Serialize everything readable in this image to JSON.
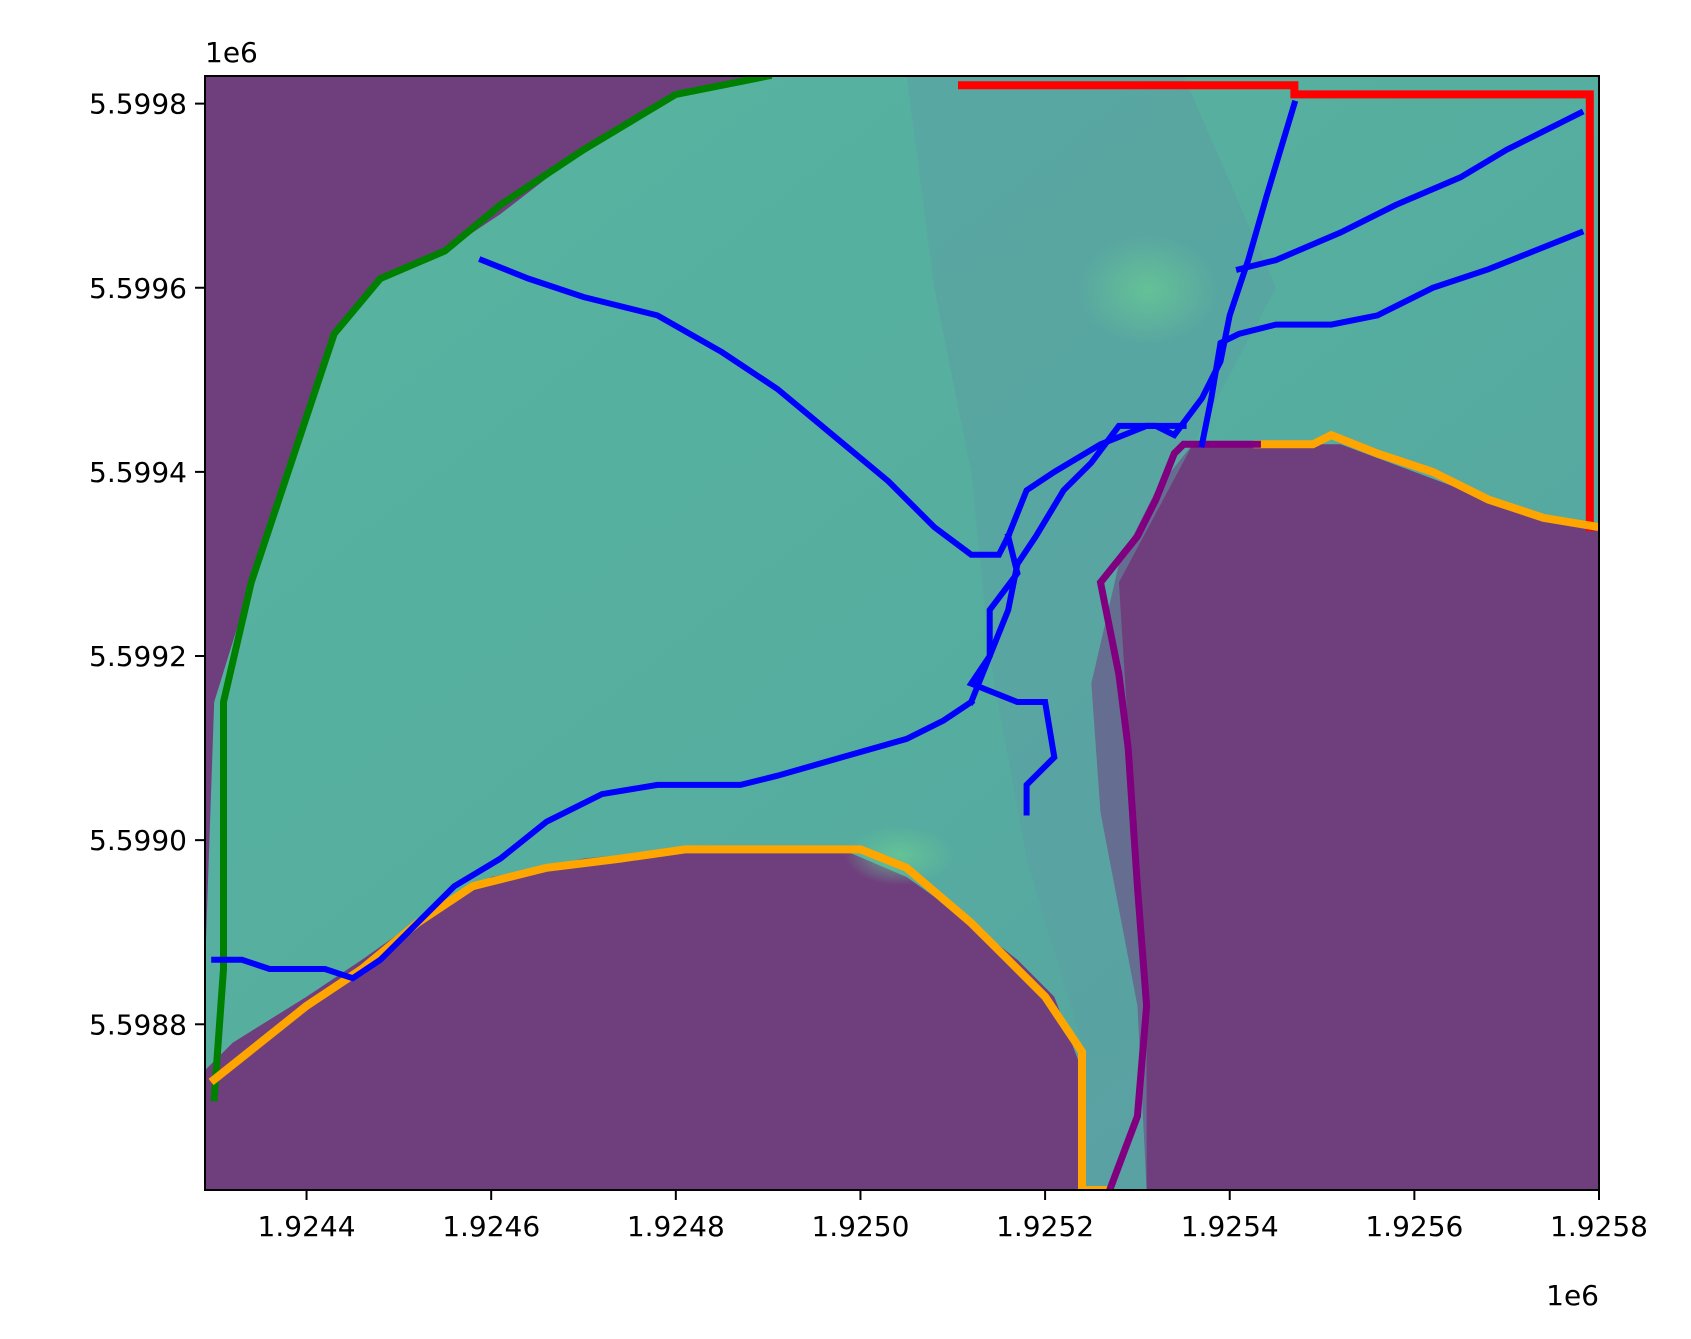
{
  "figure": {
    "x_offset_text": "1e6",
    "y_offset_text": "1e6"
  },
  "axes": {
    "xlim": [
      1.92429,
      1.9258
    ],
    "ylim": [
      5.59862,
      5.59983
    ],
    "x_ticks": [
      {
        "value": 1.9244,
        "label": "1.9244"
      },
      {
        "value": 1.9246,
        "label": "1.9246"
      },
      {
        "value": 1.9248,
        "label": "1.9248"
      },
      {
        "value": 1.925,
        "label": "1.9250"
      },
      {
        "value": 1.9252,
        "label": "1.9252"
      },
      {
        "value": 1.9254,
        "label": "1.9254"
      },
      {
        "value": 1.9256,
        "label": "1.9256"
      },
      {
        "value": 1.9258,
        "label": "1.9258"
      }
    ],
    "y_ticks": [
      {
        "value": 5.5998,
        "label": "5.5998"
      },
      {
        "value": 5.5996,
        "label": "5.5996"
      },
      {
        "value": 5.5994,
        "label": "5.5994"
      },
      {
        "value": 5.5992,
        "label": "5.5992"
      },
      {
        "value": 5.599,
        "label": "5.5990"
      },
      {
        "value": 5.5988,
        "label": "5.5988"
      }
    ]
  },
  "colors": {
    "background_mask": "#6f3f7d",
    "terrain": "#55ae9f",
    "terrain_dark": "#5a9ea2",
    "terrain_light": "#62c196",
    "channels": "#0000ff",
    "boundary_north": "#ff0000",
    "boundary_west": "#008000",
    "boundary_south": "#ffa500",
    "boundary_east": "#800080"
  },
  "map_layers": {
    "terrain_outline": [
      [
        1.92429,
        5.59872
      ],
      [
        1.92429,
        5.59886
      ],
      [
        1.9243,
        5.59915
      ],
      [
        1.92434,
        5.59928
      ],
      [
        1.92439,
        5.59943
      ],
      [
        1.92443,
        5.59955
      ],
      [
        1.92448,
        5.59961
      ],
      [
        1.92455,
        5.59964
      ],
      [
        1.92461,
        5.59968
      ],
      [
        1.9247,
        5.59975
      ],
      [
        1.9248,
        5.59981
      ],
      [
        1.9249,
        5.59983
      ],
      [
        1.9258,
        5.59983
      ],
      [
        1.9258,
        5.59934
      ],
      [
        1.92575,
        5.59935
      ],
      [
        1.92568,
        5.59937
      ],
      [
        1.9256,
        5.5994
      ],
      [
        1.92552,
        5.59943
      ],
      [
        1.92543,
        5.59943
      ],
      [
        1.92536,
        5.59943
      ],
      [
        1.92532,
        5.59938
      ],
      [
        1.92528,
        5.5993
      ],
      [
        1.92525,
        5.59917
      ],
      [
        1.92526,
        5.59903
      ],
      [
        1.9253,
        5.59882
      ],
      [
        1.92531,
        5.59862
      ],
      [
        1.92524,
        5.59862
      ],
      [
        1.92524,
        5.59875
      ],
      [
        1.92521,
        5.59883
      ],
      [
        1.92517,
        5.59887
      ],
      [
        1.92512,
        5.59891
      ],
      [
        1.92505,
        5.59896
      ],
      [
        1.92498,
        5.59899
      ],
      [
        1.92491,
        5.59899
      ],
      [
        1.9248,
        5.59899
      ],
      [
        1.9247,
        5.59898
      ],
      [
        1.9246,
        5.59896
      ],
      [
        1.92453,
        5.59892
      ],
      [
        1.92446,
        5.59887
      ],
      [
        1.9244,
        5.59883
      ],
      [
        1.92432,
        5.59878
      ],
      [
        1.92429,
        5.59875
      ]
    ],
    "boundary_north": [
      [
        [
          1.92511,
          5.59982
        ],
        [
          1.92547,
          5.59982
        ],
        [
          1.92547,
          5.59981
        ],
        [
          1.92579,
          5.59981
        ],
        [
          1.92579,
          5.59934
        ]
      ]
    ],
    "boundary_west": [
      [
        [
          1.9249,
          5.59983
        ],
        [
          1.9248,
          5.59981
        ],
        [
          1.9247,
          5.59975
        ],
        [
          1.92461,
          5.59969
        ],
        [
          1.92455,
          5.59964
        ],
        [
          1.92448,
          5.59961
        ],
        [
          1.92443,
          5.59955
        ],
        [
          1.92439,
          5.59943
        ],
        [
          1.92434,
          5.59928
        ],
        [
          1.92431,
          5.59915
        ],
        [
          1.92431,
          5.59886
        ],
        [
          1.9243,
          5.59872
        ]
      ]
    ],
    "boundary_south": [
      [
        [
          1.9243,
          5.59874
        ],
        [
          1.9244,
          5.59882
        ],
        [
          1.92446,
          5.59886
        ],
        [
          1.92452,
          5.59891
        ],
        [
          1.92458,
          5.59895
        ],
        [
          1.92466,
          5.59897
        ],
        [
          1.92474,
          5.59898
        ],
        [
          1.92481,
          5.59899
        ],
        [
          1.925,
          5.59899
        ],
        [
          1.92505,
          5.59897
        ],
        [
          1.92512,
          5.59891
        ],
        [
          1.92516,
          5.59887
        ],
        [
          1.9252,
          5.59883
        ],
        [
          1.92524,
          5.59877
        ],
        [
          1.92524,
          5.59862
        ],
        [
          1.92527,
          5.59862
        ]
      ],
      [
        [
          1.92543,
          5.59943
        ],
        [
          1.92549,
          5.59943
        ],
        [
          1.92551,
          5.59944
        ],
        [
          1.92556,
          5.59942
        ],
        [
          1.92562,
          5.5994
        ],
        [
          1.92568,
          5.59937
        ],
        [
          1.92574,
          5.59935
        ],
        [
          1.9258,
          5.59934
        ]
      ]
    ],
    "boundary_east": [
      [
        [
          1.92527,
          5.59862
        ],
        [
          1.9253,
          5.5987
        ],
        [
          1.92531,
          5.59882
        ],
        [
          1.9253,
          5.59895
        ],
        [
          1.92529,
          5.5991
        ],
        [
          1.92528,
          5.59918
        ],
        [
          1.92526,
          5.59928
        ],
        [
          1.9253,
          5.59933
        ],
        [
          1.92532,
          5.59937
        ],
        [
          1.92534,
          5.59942
        ],
        [
          1.92535,
          5.59943
        ],
        [
          1.92543,
          5.59943
        ]
      ]
    ],
    "channels": [
      [
        [
          1.9243,
          5.59887
        ],
        [
          1.92433,
          5.59887
        ],
        [
          1.92436,
          5.59886
        ],
        [
          1.92442,
          5.59886
        ],
        [
          1.92445,
          5.59885
        ],
        [
          1.92448,
          5.59887
        ],
        [
          1.92452,
          5.59891
        ],
        [
          1.92456,
          5.59895
        ],
        [
          1.92461,
          5.59898
        ],
        [
          1.92466,
          5.59902
        ],
        [
          1.92472,
          5.59905
        ],
        [
          1.92478,
          5.59906
        ],
        [
          1.92487,
          5.59906
        ],
        [
          1.92491,
          5.59907
        ],
        [
          1.92498,
          5.59909
        ],
        [
          1.92505,
          5.59911
        ],
        [
          1.92509,
          5.59913
        ],
        [
          1.92512,
          5.59915
        ]
      ],
      [
        [
          1.92512,
          5.59915
        ],
        [
          1.92514,
          5.5992
        ],
        [
          1.92516,
          5.59925
        ],
        [
          1.92517,
          5.5993
        ],
        [
          1.92519,
          5.59933
        ],
        [
          1.92522,
          5.59938
        ],
        [
          1.92525,
          5.59941
        ],
        [
          1.92528,
          5.59945
        ],
        [
          1.92532,
          5.59945
        ],
        [
          1.92534,
          5.59944
        ],
        [
          1.92537,
          5.59948
        ],
        [
          1.92539,
          5.59952
        ],
        [
          1.9254,
          5.59957
        ],
        [
          1.92542,
          5.59963
        ],
        [
          1.92544,
          5.5997
        ],
        [
          1.92547,
          5.5998
        ]
      ],
      [
        [
          1.92459,
          5.59963
        ],
        [
          1.92464,
          5.59961
        ],
        [
          1.9247,
          5.59959
        ],
        [
          1.92478,
          5.59957
        ],
        [
          1.92485,
          5.59953
        ],
        [
          1.92491,
          5.59949
        ],
        [
          1.92497,
          5.59944
        ],
        [
          1.92503,
          5.59939
        ],
        [
          1.92508,
          5.59934
        ],
        [
          1.92512,
          5.59931
        ],
        [
          1.92515,
          5.59931
        ],
        [
          1.92516,
          5.59933
        ]
      ],
      [
        [
          1.92516,
          5.59933
        ],
        [
          1.92518,
          5.59938
        ],
        [
          1.92521,
          5.5994
        ],
        [
          1.92526,
          5.59943
        ],
        [
          1.92531,
          5.59945
        ],
        [
          1.92535,
          5.59945
        ]
      ],
      [
        [
          1.92516,
          5.59933
        ],
        [
          1.92517,
          5.59929
        ],
        [
          1.92514,
          5.59925
        ],
        [
          1.92514,
          5.5992
        ],
        [
          1.92512,
          5.59917
        ],
        [
          1.92517,
          5.59915
        ],
        [
          1.9252,
          5.59915
        ],
        [
          1.92521,
          5.59909
        ],
        [
          1.92518,
          5.59906
        ],
        [
          1.92518,
          5.59903
        ]
      ],
      [
        [
          1.92537,
          5.59943
        ],
        [
          1.92538,
          5.59948
        ],
        [
          1.92539,
          5.59954
        ],
        [
          1.92541,
          5.59955
        ],
        [
          1.92545,
          5.59956
        ],
        [
          1.92551,
          5.59956
        ],
        [
          1.92556,
          5.59957
        ],
        [
          1.92562,
          5.5996
        ],
        [
          1.92568,
          5.59962
        ],
        [
          1.92573,
          5.59964
        ],
        [
          1.92578,
          5.59966
        ]
      ],
      [
        [
          1.92541,
          5.59962
        ],
        [
          1.92545,
          5.59963
        ],
        [
          1.92552,
          5.59966
        ],
        [
          1.92558,
          5.59969
        ],
        [
          1.92565,
          5.59972
        ],
        [
          1.9257,
          5.59975
        ],
        [
          1.92576,
          5.59978
        ],
        [
          1.92578,
          5.59979
        ]
      ]
    ]
  }
}
